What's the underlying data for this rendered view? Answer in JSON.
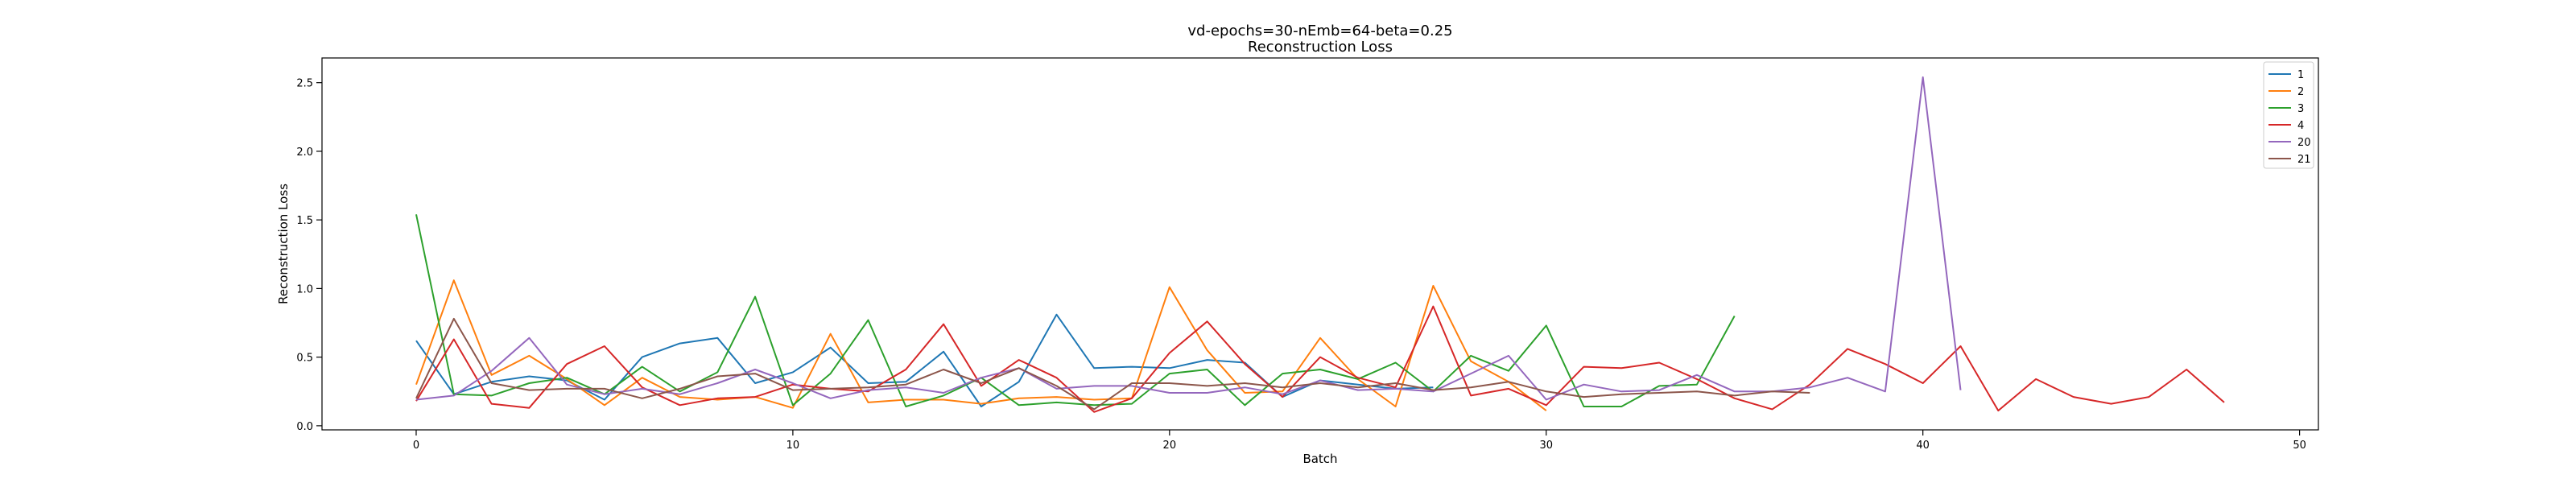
{
  "chart_data": {
    "type": "line",
    "title": "vd-epochs=30-nEmb=64-beta=0.25",
    "subtitle": "Reconstruction Loss",
    "xlabel": "Batch",
    "ylabel": "Reconstruction Loss",
    "xlim": [
      -2.5,
      50.5
    ],
    "ylim": [
      -0.03,
      2.68
    ],
    "xticks": [
      0,
      10,
      20,
      30,
      40,
      50
    ],
    "yticks": [
      0.0,
      0.5,
      1.0,
      1.5,
      2.0,
      2.5
    ],
    "xtick_labels": [
      "0",
      "10",
      "20",
      "30",
      "40",
      "50"
    ],
    "ytick_labels": [
      "0.0",
      "0.5",
      "1.0",
      "1.5",
      "2.0",
      "2.5"
    ],
    "grid": false,
    "legend_placement": "top-right",
    "series": [
      {
        "name": "1",
        "color": "#1f77b4",
        "values": [
          0.62,
          0.23,
          0.32,
          0.36,
          0.33,
          0.19,
          0.5,
          0.6,
          0.64,
          0.31,
          0.39,
          0.57,
          0.31,
          0.32,
          0.54,
          0.14,
          0.32,
          0.81,
          0.42,
          0.43,
          0.42,
          0.48,
          0.46,
          0.21,
          0.33,
          0.3,
          0.27,
          0.28
        ]
      },
      {
        "name": "2",
        "color": "#ff7f0e",
        "values": [
          0.3,
          1.06,
          0.37,
          0.51,
          0.34,
          0.15,
          0.35,
          0.21,
          0.19,
          0.21,
          0.13,
          0.67,
          0.17,
          0.19,
          0.19,
          0.16,
          0.2,
          0.21,
          0.19,
          0.2,
          1.01,
          0.55,
          0.24,
          0.25,
          0.64,
          0.34,
          0.14,
          1.02,
          0.47,
          0.32,
          0.11
        ]
      },
      {
        "name": "3",
        "color": "#2ca02c",
        "values": [
          1.54,
          0.23,
          0.22,
          0.31,
          0.35,
          0.23,
          0.43,
          0.25,
          0.39,
          0.94,
          0.15,
          0.38,
          0.77,
          0.14,
          0.22,
          0.35,
          0.15,
          0.17,
          0.15,
          0.16,
          0.38,
          0.41,
          0.15,
          0.38,
          0.41,
          0.34,
          0.46,
          0.25,
          0.51,
          0.4,
          0.73,
          0.14,
          0.14,
          0.29,
          0.3,
          0.8
        ]
      },
      {
        "name": "4",
        "color": "#d62728",
        "values": [
          0.18,
          0.63,
          0.16,
          0.13,
          0.45,
          0.58,
          0.28,
          0.15,
          0.2,
          0.21,
          0.3,
          0.27,
          0.25,
          0.41,
          0.74,
          0.29,
          0.48,
          0.35,
          0.1,
          0.2,
          0.53,
          0.76,
          0.45,
          0.21,
          0.5,
          0.35,
          0.28,
          0.87,
          0.22,
          0.27,
          0.15,
          0.43,
          0.42,
          0.46,
          0.34,
          0.2,
          0.12,
          0.3,
          0.56,
          0.45,
          0.31,
          0.58,
          0.11,
          0.34,
          0.21,
          0.16,
          0.21,
          0.41,
          0.17
        ]
      },
      {
        "name": "20",
        "color": "#9467bd",
        "values": [
          0.19,
          0.22,
          0.4,
          0.64,
          0.3,
          0.23,
          0.27,
          0.23,
          0.31,
          0.41,
          0.31,
          0.2,
          0.26,
          0.28,
          0.24,
          0.35,
          0.42,
          0.27,
          0.29,
          0.29,
          0.24,
          0.24,
          0.28,
          0.23,
          0.33,
          0.26,
          0.27,
          0.25,
          0.38,
          0.51,
          0.19,
          0.3,
          0.25,
          0.26,
          0.37,
          0.25,
          0.25,
          0.28,
          0.35,
          0.25,
          2.54,
          0.26
        ]
      },
      {
        "name": "21",
        "color": "#8c564b",
        "values": [
          0.2,
          0.78,
          0.31,
          0.26,
          0.27,
          0.27,
          0.2,
          0.27,
          0.36,
          0.38,
          0.26,
          0.27,
          0.28,
          0.3,
          0.41,
          0.31,
          0.42,
          0.29,
          0.12,
          0.31,
          0.31,
          0.29,
          0.31,
          0.28,
          0.31,
          0.28,
          0.31,
          0.26,
          0.28,
          0.32,
          0.25,
          0.21,
          0.23,
          0.24,
          0.25,
          0.22,
          0.25,
          0.24
        ]
      }
    ]
  }
}
